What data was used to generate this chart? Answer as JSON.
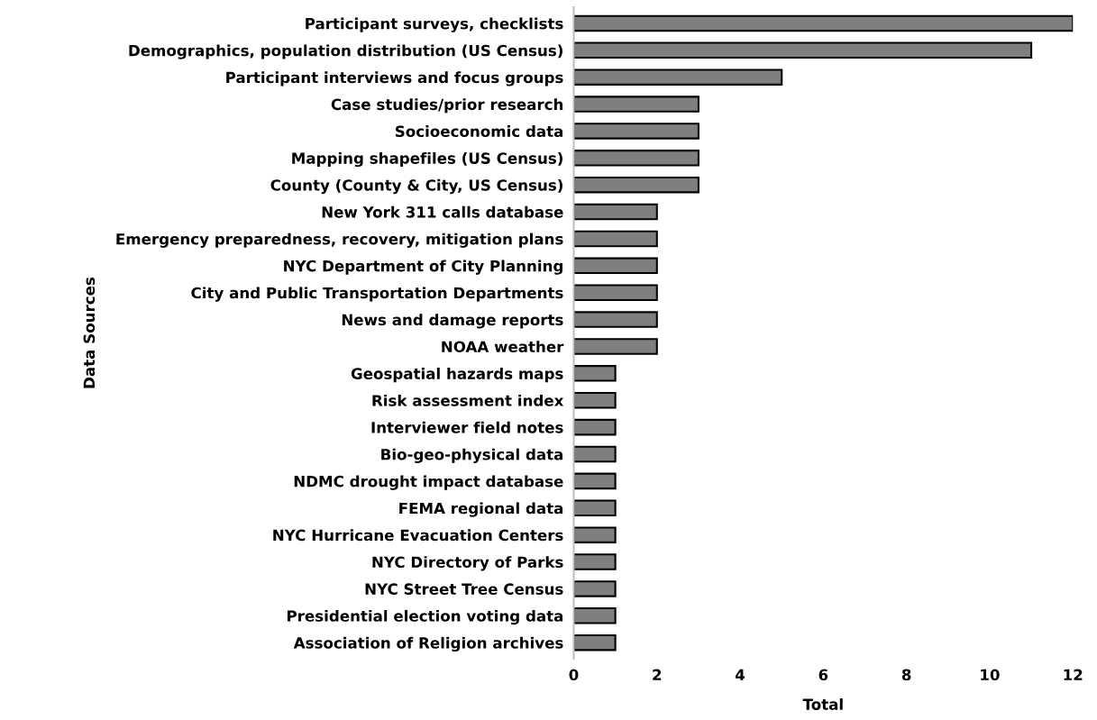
{
  "chart_data": {
    "type": "bar",
    "orientation": "horizontal",
    "xlabel": "Total",
    "ylabel": "Data Sources",
    "categories": [
      "Participant surveys, checklists",
      "Demographics, population distribution (US Census)",
      "Participant interviews and focus groups",
      "Case studies/prior research",
      "Socioeconomic data",
      "Mapping shapefiles (US Census)",
      "County (County & City, US Census)",
      "New York 311 calls database",
      "Emergency preparedness, recovery, mitigation plans",
      "NYC Department of City Planning",
      "City and Public Transportation Departments",
      "News and damage reports",
      "NOAA weather",
      "Geospatial hazards maps",
      "Risk assessment index",
      "Interviewer field notes",
      "Bio-geo-physical data",
      "NDMC drought impact database",
      "FEMA regional data",
      "NYC Hurricane Evacuation Centers",
      "NYC Directory of Parks",
      "NYC Street Tree Census",
      "Presidential election voting data",
      "Association of Religion archives"
    ],
    "values": [
      12,
      11,
      5,
      3,
      3,
      3,
      3,
      2,
      2,
      2,
      2,
      2,
      2,
      1,
      1,
      1,
      1,
      1,
      1,
      1,
      1,
      1,
      1,
      1
    ],
    "color": "#7f7f7f",
    "xlim": [
      0,
      12
    ],
    "xticks": [
      0,
      2,
      4,
      6,
      8,
      10,
      12
    ],
    "grid": false,
    "legend": false
  }
}
